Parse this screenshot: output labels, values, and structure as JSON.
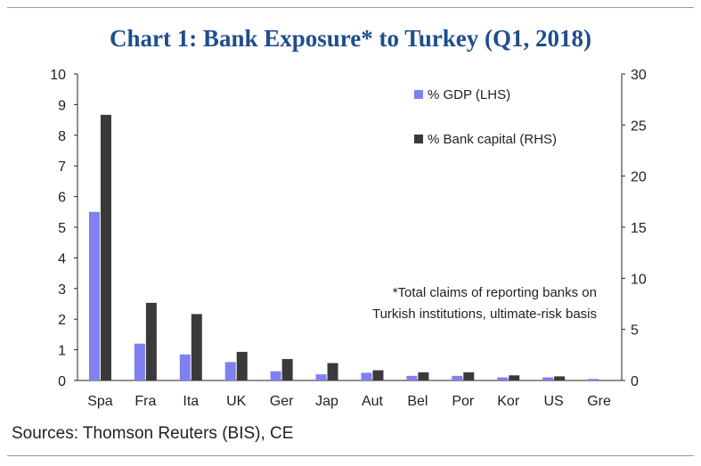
{
  "chart_data": {
    "type": "bar",
    "title": "Chart 1: Bank Exposure* to Turkey (Q1, 2018)",
    "categories": [
      "Spa",
      "Fra",
      "Ita",
      "UK",
      "Ger",
      "Jap",
      "Aut",
      "Bel",
      "Por",
      "Kor",
      "US",
      "Gre"
    ],
    "series": [
      {
        "name": "% GDP (LHS)",
        "axis": "left",
        "color": "#8080f0",
        "values": [
          5.5,
          1.2,
          0.85,
          0.6,
          0.3,
          0.2,
          0.25,
          0.15,
          0.15,
          0.1,
          0.1,
          0.05
        ]
      },
      {
        "name": "% Bank capital (RHS)",
        "axis": "right",
        "color": "#3a3a3a",
        "values": [
          26,
          7.6,
          6.5,
          2.8,
          2.1,
          1.7,
          1.0,
          0.8,
          0.8,
          0.5,
          0.4,
          0
        ]
      }
    ],
    "left_axis": {
      "min": 0,
      "max": 10,
      "ticks": [
        "0",
        "1",
        "2",
        "3",
        "4",
        "5",
        "6",
        "7",
        "8",
        "9",
        "10"
      ]
    },
    "right_axis": {
      "min": 0,
      "max": 30,
      "ticks": [
        "0",
        "5",
        "10",
        "15",
        "20",
        "25",
        "30"
      ]
    },
    "legend_position": "top-right",
    "grid": false,
    "annotation": [
      "*Total claims of reporting banks on",
      "Turkish institutions, ultimate-risk basis"
    ]
  },
  "footer": {
    "source": "Sources: Thomson Reuters (BIS), CE"
  }
}
